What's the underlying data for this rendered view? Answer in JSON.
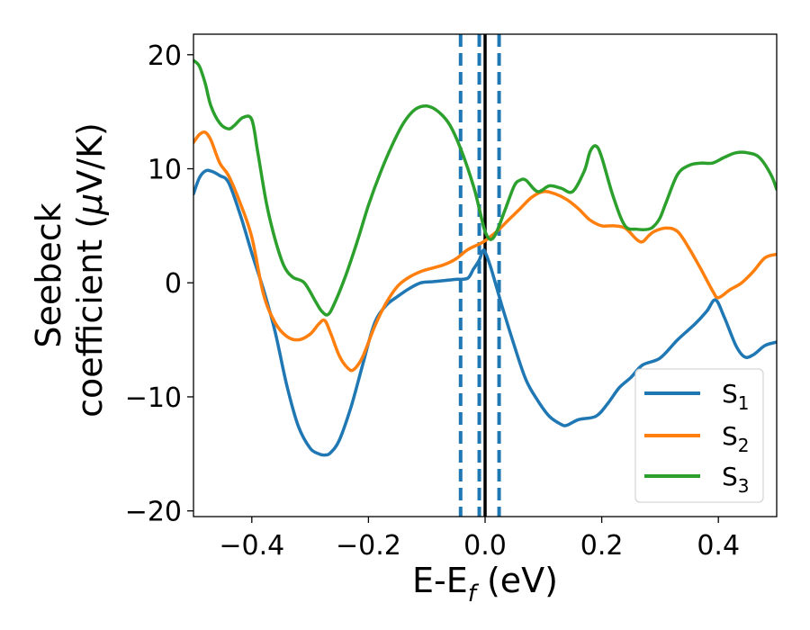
{
  "chart_data": {
    "type": "line",
    "xlabel": {
      "main": "E-E",
      "sub": "f",
      "unit": " (eV)"
    },
    "ylabel": {
      "line1": "Seebeck",
      "line2": "coefficient  (",
      "mu": "μ",
      "unit": "V/K)"
    },
    "xlim": [
      -0.5,
      0.5
    ],
    "ylim": [
      -20.5,
      21.8
    ],
    "xticks": [
      -0.4,
      -0.2,
      0.0,
      0.2,
      0.4
    ],
    "xtick_labels": [
      "−0.4",
      "−0.2",
      "0.0",
      "0.2",
      "0.4"
    ],
    "yticks": [
      -20,
      -10,
      0,
      10,
      20
    ],
    "ytick_labels": [
      "−20",
      "−10",
      "0",
      "10",
      "20"
    ],
    "grid": false,
    "legend_position": "lower-right",
    "vlines": [
      {
        "x": -0.042,
        "style": "dashed",
        "color": "#1f77b4"
      },
      {
        "x": -0.01,
        "style": "dashed",
        "color": "#1f77b4"
      },
      {
        "x": 0.0,
        "style": "solid",
        "color": "#000000"
      },
      {
        "x": 0.024,
        "style": "dashed",
        "color": "#1f77b4"
      }
    ],
    "series": [
      {
        "name": "S",
        "sub": "1",
        "color": "#1f77b4",
        "x": [
          -0.5,
          -0.49,
          -0.48,
          -0.47,
          -0.455,
          -0.44,
          -0.42,
          -0.4,
          -0.38,
          -0.36,
          -0.34,
          -0.32,
          -0.3,
          -0.285,
          -0.275,
          -0.265,
          -0.25,
          -0.23,
          -0.21,
          -0.19,
          -0.17,
          -0.15,
          -0.13,
          -0.11,
          -0.09,
          -0.07,
          -0.05,
          -0.03,
          -0.02,
          -0.01,
          -0.004,
          0.0,
          0.01,
          0.03,
          0.05,
          0.07,
          0.09,
          0.11,
          0.13,
          0.14,
          0.16,
          0.19,
          0.21,
          0.23,
          0.25,
          0.27,
          0.3,
          0.33,
          0.36,
          0.38,
          0.395,
          0.41,
          0.43,
          0.445,
          0.46,
          0.48,
          0.5
        ],
        "y": [
          7.8,
          9.2,
          9.8,
          9.8,
          9.4,
          8.8,
          6.0,
          2.6,
          -0.6,
          -4.3,
          -9.0,
          -12.6,
          -14.5,
          -15.0,
          -15.1,
          -14.9,
          -13.8,
          -10.9,
          -7.2,
          -3.6,
          -2.0,
          -1.2,
          -0.5,
          0.0,
          0.1,
          0.2,
          0.3,
          0.4,
          1.2,
          2.0,
          2.8,
          2.7,
          1.3,
          -2.2,
          -5.5,
          -8.5,
          -10.3,
          -11.7,
          -12.4,
          -12.5,
          -12.0,
          -11.7,
          -10.6,
          -9.2,
          -8.3,
          -7.2,
          -6.6,
          -5.0,
          -3.6,
          -2.5,
          -1.5,
          -3.0,
          -5.5,
          -6.5,
          -6.3,
          -5.5,
          -5.2
        ]
      },
      {
        "name": "S",
        "sub": "2",
        "color": "#ff7f0e",
        "x": [
          -0.5,
          -0.49,
          -0.48,
          -0.47,
          -0.455,
          -0.44,
          -0.42,
          -0.4,
          -0.38,
          -0.36,
          -0.34,
          -0.32,
          -0.3,
          -0.285,
          -0.275,
          -0.265,
          -0.25,
          -0.235,
          -0.225,
          -0.21,
          -0.19,
          -0.17,
          -0.15,
          -0.13,
          -0.11,
          -0.09,
          -0.07,
          -0.05,
          -0.03,
          -0.01,
          0.0,
          0.02,
          0.04,
          0.06,
          0.08,
          0.1,
          0.12,
          0.14,
          0.16,
          0.18,
          0.2,
          0.22,
          0.24,
          0.26,
          0.27,
          0.28,
          0.29,
          0.31,
          0.33,
          0.35,
          0.37,
          0.39,
          0.4,
          0.42,
          0.44,
          0.46,
          0.48,
          0.5
        ],
        "y": [
          12.3,
          13.0,
          13.2,
          12.5,
          10.5,
          9.4,
          7.0,
          4.0,
          -1.0,
          -3.5,
          -4.7,
          -5.0,
          -4.5,
          -3.6,
          -3.3,
          -4.4,
          -6.4,
          -7.5,
          -7.6,
          -6.5,
          -3.9,
          -1.8,
          -0.3,
          0.5,
          1.0,
          1.3,
          1.6,
          2.1,
          2.9,
          3.4,
          3.7,
          4.5,
          5.5,
          6.5,
          7.5,
          8.0,
          7.8,
          7.3,
          6.5,
          5.5,
          5.0,
          5.0,
          4.8,
          3.8,
          3.6,
          4.1,
          4.5,
          4.8,
          4.5,
          3.0,
          1.2,
          -0.7,
          -1.3,
          -0.6,
          0.0,
          1.0,
          2.2,
          2.5
        ]
      },
      {
        "name": "S",
        "sub": "3",
        "color": "#2ca02c",
        "x": [
          -0.5,
          -0.49,
          -0.48,
          -0.47,
          -0.455,
          -0.44,
          -0.43,
          -0.415,
          -0.4,
          -0.39,
          -0.375,
          -0.36,
          -0.345,
          -0.33,
          -0.31,
          -0.29,
          -0.28,
          -0.27,
          -0.26,
          -0.24,
          -0.22,
          -0.2,
          -0.18,
          -0.16,
          -0.14,
          -0.12,
          -0.1,
          -0.08,
          -0.06,
          -0.04,
          -0.02,
          -0.01,
          0.0,
          0.01,
          0.02,
          0.035,
          0.05,
          0.06,
          0.07,
          0.09,
          0.11,
          0.13,
          0.15,
          0.17,
          0.18,
          0.19,
          0.2,
          0.22,
          0.24,
          0.26,
          0.28,
          0.29,
          0.3,
          0.31,
          0.33,
          0.35,
          0.37,
          0.39,
          0.41,
          0.43,
          0.45,
          0.47,
          0.49,
          0.5
        ],
        "y": [
          19.5,
          19.0,
          17.5,
          15.5,
          14.0,
          13.5,
          13.8,
          14.5,
          14.3,
          11.5,
          7.0,
          3.8,
          1.5,
          0.5,
          0.0,
          -1.7,
          -2.5,
          -2.8,
          -2.0,
          0.5,
          3.5,
          6.8,
          9.6,
          12.0,
          14.0,
          15.2,
          15.5,
          15.0,
          13.8,
          11.5,
          8.5,
          6.5,
          4.5,
          3.8,
          4.5,
          6.5,
          8.5,
          9.0,
          9.0,
          8.0,
          8.5,
          8.3,
          8.0,
          9.8,
          11.5,
          12.0,
          11.0,
          7.5,
          5.0,
          4.7,
          4.7,
          5.0,
          5.7,
          7.0,
          9.5,
          10.3,
          10.5,
          10.5,
          11.0,
          11.4,
          11.4,
          11.0,
          9.5,
          8.2
        ]
      }
    ]
  }
}
